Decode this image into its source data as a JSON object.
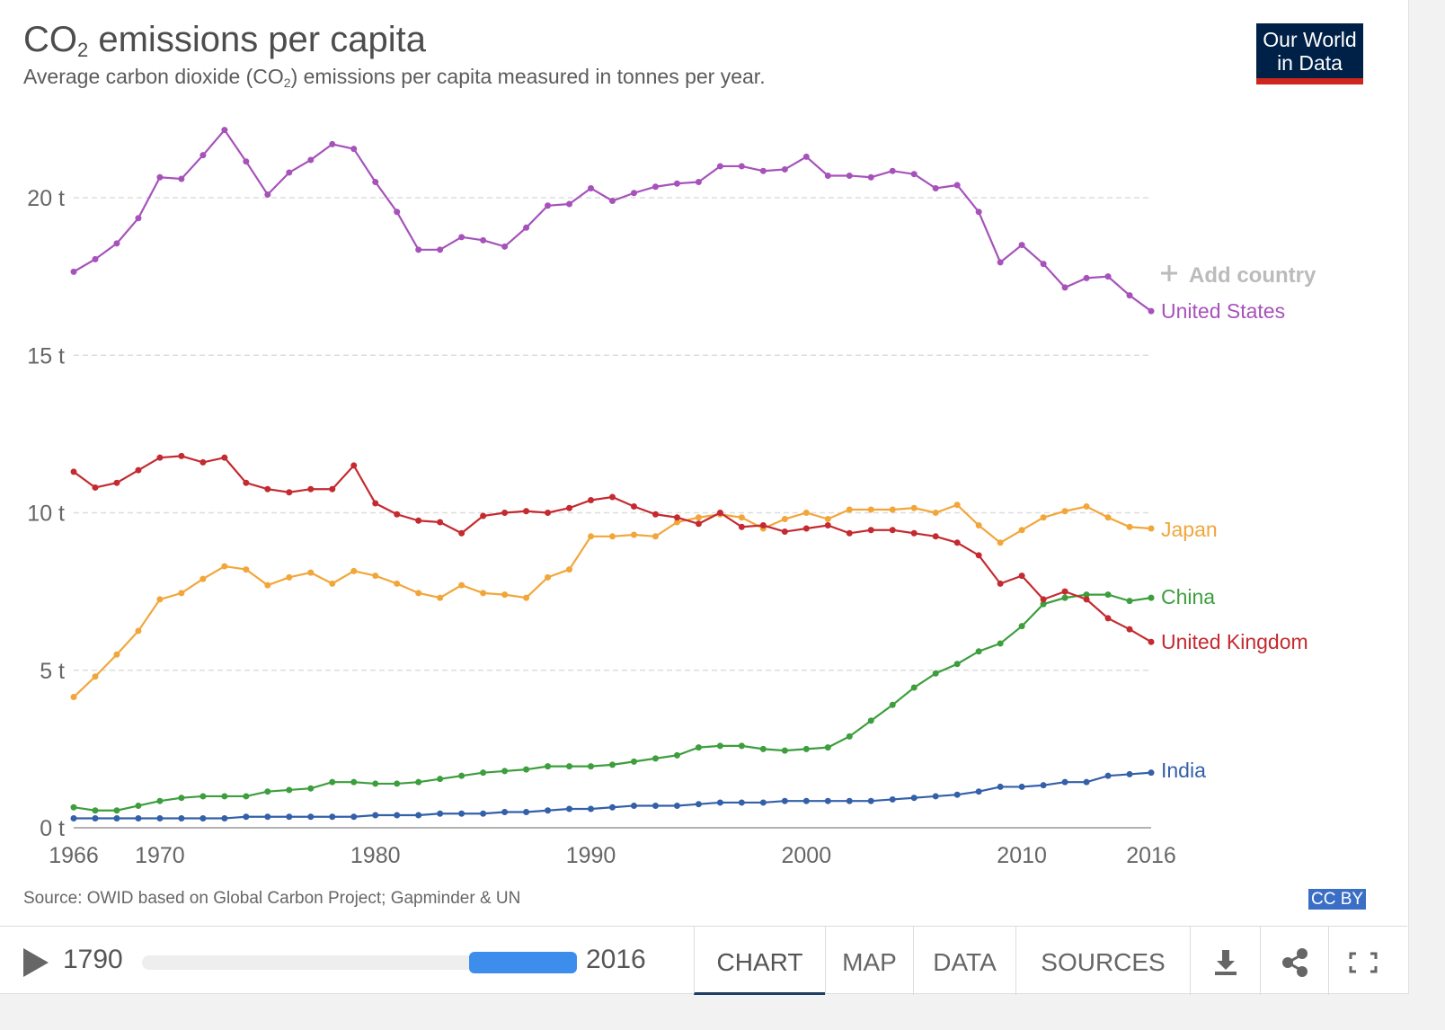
{
  "header": {
    "title_main": "CO",
    "title_sub": "2",
    "title_rest": " emissions per capita",
    "subtitle_a": "Average carbon dioxide (CO",
    "subtitle_sub": "2",
    "subtitle_b": ") emissions per capita measured in tonnes per year.",
    "logo_line1": "Our World",
    "logo_line2": "in Data"
  },
  "add_country": "Add country",
  "source": "Source: OWID based on Global Carbon Project; Gapminder & UN",
  "license": "CC BY",
  "footer": {
    "start_year": "1790",
    "end_year": "2016",
    "tabs": [
      "CHART",
      "MAP",
      "DATA",
      "SOURCES"
    ],
    "icons": [
      "download-icon",
      "share-icon",
      "fullscreen-icon"
    ]
  },
  "chart_data": {
    "type": "line",
    "xlim": [
      1966,
      2016
    ],
    "ylim": [
      0,
      22.5
    ],
    "x_ticks": [
      "1966",
      "1970",
      "1980",
      "1990",
      "2000",
      "2010",
      "2016"
    ],
    "x_tick_values": [
      1966,
      1970,
      1980,
      1990,
      2000,
      2010,
      2016
    ],
    "y_ticks": [
      "0 t",
      "5 t",
      "10 t",
      "15 t",
      "20 t"
    ],
    "y_tick_values": [
      0,
      5,
      10,
      15,
      20
    ],
    "grid": "horizontal-dashed",
    "x": [
      1966,
      1967,
      1968,
      1969,
      1970,
      1971,
      1972,
      1973,
      1974,
      1975,
      1976,
      1977,
      1978,
      1979,
      1980,
      1981,
      1982,
      1983,
      1984,
      1985,
      1986,
      1987,
      1988,
      1989,
      1990,
      1991,
      1992,
      1993,
      1994,
      1995,
      1996,
      1997,
      1998,
      1999,
      2000,
      2001,
      2002,
      2003,
      2004,
      2005,
      2006,
      2007,
      2008,
      2009,
      2010,
      2011,
      2012,
      2013,
      2014,
      2015,
      2016
    ],
    "series": [
      {
        "name": "United States",
        "color": "#a652ba",
        "values": [
          17.65,
          18.05,
          18.55,
          19.35,
          20.65,
          20.6,
          21.35,
          22.15,
          21.15,
          20.1,
          20.8,
          21.2,
          21.7,
          21.55,
          20.5,
          19.55,
          18.35,
          18.35,
          18.75,
          18.65,
          18.45,
          19.05,
          19.75,
          19.8,
          20.3,
          19.9,
          20.15,
          20.35,
          20.45,
          20.5,
          21.0,
          21.0,
          20.85,
          20.9,
          21.3,
          20.7,
          20.7,
          20.65,
          20.85,
          20.75,
          20.3,
          20.4,
          19.55,
          17.95,
          18.5,
          17.9,
          17.15,
          17.45,
          17.5,
          16.9,
          16.4
        ]
      },
      {
        "name": "Japan",
        "color": "#f2a63a",
        "values": [
          4.15,
          4.8,
          5.5,
          6.25,
          7.25,
          7.45,
          7.9,
          8.3,
          8.2,
          7.7,
          7.95,
          8.1,
          7.75,
          8.15,
          8.0,
          7.75,
          7.45,
          7.3,
          7.7,
          7.45,
          7.4,
          7.3,
          7.95,
          8.2,
          9.25,
          9.25,
          9.3,
          9.25,
          9.7,
          9.85,
          9.95,
          9.85,
          9.5,
          9.8,
          10.0,
          9.8,
          10.1,
          10.1,
          10.1,
          10.15,
          10.0,
          10.25,
          9.6,
          9.05,
          9.45,
          9.85,
          10.05,
          10.2,
          9.85,
          9.55,
          9.5
        ]
      },
      {
        "name": "China",
        "color": "#3c9e3d",
        "values": [
          0.65,
          0.55,
          0.55,
          0.7,
          0.85,
          0.95,
          1.0,
          1.0,
          1.0,
          1.15,
          1.2,
          1.25,
          1.45,
          1.45,
          1.4,
          1.4,
          1.45,
          1.55,
          1.65,
          1.75,
          1.8,
          1.85,
          1.95,
          1.95,
          1.95,
          2.0,
          2.1,
          2.2,
          2.3,
          2.55,
          2.6,
          2.6,
          2.5,
          2.45,
          2.5,
          2.55,
          2.9,
          3.4,
          3.9,
          4.45,
          4.9,
          5.2,
          5.6,
          5.85,
          6.4,
          7.1,
          7.3,
          7.4,
          7.4,
          7.2,
          7.3
        ]
      },
      {
        "name": "United Kingdom",
        "color": "#c42a30",
        "values": [
          11.3,
          10.8,
          10.95,
          11.35,
          11.75,
          11.8,
          11.6,
          11.75,
          10.95,
          10.75,
          10.65,
          10.75,
          10.75,
          11.5,
          10.3,
          9.95,
          9.75,
          9.7,
          9.35,
          9.9,
          10.0,
          10.05,
          10.0,
          10.15,
          10.4,
          10.5,
          10.2,
          9.95,
          9.85,
          9.65,
          10.0,
          9.55,
          9.6,
          9.4,
          9.5,
          9.6,
          9.35,
          9.45,
          9.45,
          9.35,
          9.25,
          9.05,
          8.65,
          7.75,
          8.0,
          7.25,
          7.5,
          7.25,
          6.65,
          6.3,
          5.9
        ]
      },
      {
        "name": "India",
        "color": "#3360a9",
        "values": [
          0.3,
          0.3,
          0.3,
          0.3,
          0.3,
          0.3,
          0.3,
          0.3,
          0.35,
          0.35,
          0.35,
          0.35,
          0.35,
          0.35,
          0.4,
          0.4,
          0.4,
          0.45,
          0.45,
          0.45,
          0.5,
          0.5,
          0.55,
          0.6,
          0.6,
          0.65,
          0.7,
          0.7,
          0.7,
          0.75,
          0.8,
          0.8,
          0.8,
          0.85,
          0.85,
          0.85,
          0.85,
          0.85,
          0.9,
          0.95,
          1.0,
          1.05,
          1.15,
          1.3,
          1.3,
          1.35,
          1.45,
          1.45,
          1.65,
          1.7,
          1.75
        ]
      }
    ]
  }
}
